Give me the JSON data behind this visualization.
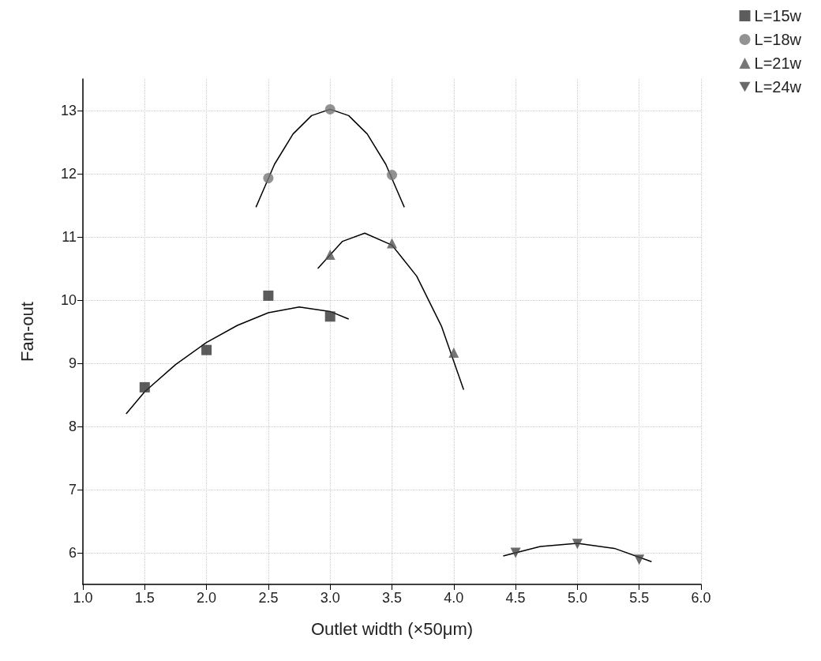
{
  "chart_data": {
    "type": "scatter",
    "xlabel": "Outlet width (×50μm)",
    "ylabel": "Fan-out",
    "xlim": [
      1,
      6
    ],
    "xticks": [
      {
        "value": 1,
        "label": "1.0"
      },
      {
        "value": 1.5,
        "label": "1.5"
      },
      {
        "value": 2,
        "label": "2.0"
      },
      {
        "value": 2.5,
        "label": "2.5"
      },
      {
        "value": 3,
        "label": "3.0"
      },
      {
        "value": 3.5,
        "label": "3.5"
      },
      {
        "value": 4,
        "label": "4.0"
      },
      {
        "value": 4.5,
        "label": "4.5"
      },
      {
        "value": 5,
        "label": "5.0"
      },
      {
        "value": 5.5,
        "label": "5.5"
      },
      {
        "value": 6,
        "label": "6.0"
      }
    ],
    "ylim": [
      5.5,
      13.5
    ],
    "yticks": [
      6,
      7,
      8,
      9,
      10,
      11,
      12,
      13
    ],
    "grid": true,
    "legend": "top right",
    "series": [
      {
        "name": "L=15w",
        "color": "#333333",
        "marker": "square",
        "x": [
          1.5,
          2,
          2.5,
          3
        ],
        "values": [
          8.62,
          9.21,
          10.07,
          9.74
        ]
      },
      {
        "name": "L=18w",
        "color": "#777777",
        "marker": "circle",
        "x": [
          2.5,
          3,
          3.5
        ],
        "values": [
          11.93,
          13.02,
          11.98
        ]
      },
      {
        "name": "L=21w",
        "color": "#555555",
        "marker": "triangle",
        "x": [
          3,
          3.5,
          4
        ],
        "values": [
          10.72,
          10.9,
          9.17
        ]
      },
      {
        "name": "L=24w",
        "color": "#444444",
        "marker": "triangle-down",
        "x": [
          4.5,
          5,
          5.5
        ],
        "values": [
          6.0,
          6.14,
          5.89
        ]
      },
      {
        "type": "line",
        "color": "#000000",
        "marker": "none",
        "x": [
          1.35,
          1.5,
          1.75,
          2,
          2.25,
          2.5,
          2.75,
          3,
          3.15
        ],
        "values": [
          8.2,
          8.55,
          8.98,
          9.33,
          9.6,
          9.8,
          9.89,
          9.82,
          9.7
        ]
      },
      {
        "type": "line",
        "color": "#000000",
        "marker": "none",
        "x": [
          2.4,
          2.55,
          2.7,
          2.85,
          3,
          3.15,
          3.3,
          3.45,
          3.6
        ],
        "values": [
          11.47,
          12.15,
          12.63,
          12.92,
          13.02,
          12.92,
          12.63,
          12.15,
          11.47
        ]
      },
      {
        "type": "line",
        "color": "#000000",
        "marker": "none",
        "x": [
          2.9,
          3.1,
          3.28,
          3.5,
          3.7,
          3.9,
          4.08
        ],
        "values": [
          10.5,
          10.93,
          11.06,
          10.87,
          10.38,
          9.59,
          8.58
        ]
      },
      {
        "type": "line",
        "color": "#000000",
        "marker": "none",
        "x": [
          4.4,
          4.7,
          5,
          5.3,
          5.6
        ],
        "values": [
          5.95,
          6.1,
          6.15,
          6.07,
          5.86
        ]
      }
    ]
  }
}
